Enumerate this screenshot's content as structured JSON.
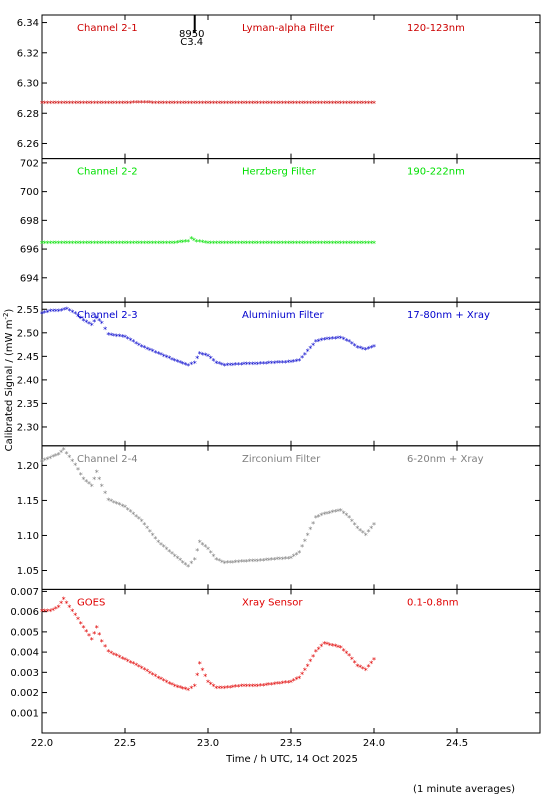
{
  "chart_data": [
    {
      "type": "scatter",
      "panel_id": "ch21",
      "channel_label": "Channel 2-1",
      "filter_label": "Lyman-alpha Filter",
      "band_label": "120-123nm",
      "color": "#cc0000",
      "ylim": [
        6.25,
        6.345
      ],
      "yticks": [
        6.26,
        6.28,
        6.3,
        6.32,
        6.34
      ],
      "ytick_labels": [
        "6.26",
        "6.28",
        "6.30",
        "6.32",
        "6.34"
      ],
      "series": [
        {
          "x": [
            22.0,
            22.1,
            22.2,
            22.3,
            22.4,
            22.5,
            22.6,
            22.7,
            22.8,
            22.9,
            23.0,
            23.1,
            23.2,
            23.3,
            23.4,
            23.5,
            23.6,
            23.7,
            23.8,
            23.9,
            24.0
          ],
          "y": [
            6.2865,
            6.2865,
            6.2865,
            6.2865,
            6.2865,
            6.2865,
            6.2868,
            6.2865,
            6.2865,
            6.2865,
            6.2865,
            6.2865,
            6.2865,
            6.2865,
            6.2865,
            6.2865,
            6.2865,
            6.2865,
            6.2865,
            6.2865,
            6.2865
          ]
        }
      ],
      "flare_marker": {
        "x": 22.92,
        "label_top": "8950",
        "label_bottom": "C3.4"
      }
    },
    {
      "type": "scatter",
      "panel_id": "ch22",
      "channel_label": "Channel 2-2",
      "filter_label": "Herzberg Filter",
      "band_label": "190-222nm",
      "color": "#00e000",
      "ylim": [
        692.3,
        702.3
      ],
      "yticks": [
        694,
        696,
        698,
        700,
        702
      ],
      "ytick_labels": [
        "694",
        "696",
        "698",
        "700",
        "702"
      ],
      "series": [
        {
          "x": [
            22.0,
            22.1,
            22.2,
            22.3,
            22.4,
            22.5,
            22.6,
            22.7,
            22.8,
            22.88,
            22.9,
            22.93,
            23.0,
            23.1,
            23.2,
            23.3,
            23.4,
            23.5,
            23.6,
            23.7,
            23.8,
            23.9,
            24.0
          ],
          "y": [
            696.4,
            696.4,
            696.4,
            696.4,
            696.4,
            696.4,
            696.4,
            696.4,
            696.4,
            696.5,
            696.7,
            696.5,
            696.4,
            696.4,
            696.4,
            696.4,
            696.4,
            696.4,
            696.4,
            696.4,
            696.4,
            696.4,
            696.4
          ]
        }
      ]
    },
    {
      "type": "scatter",
      "panel_id": "ch23",
      "channel_label": "Channel 2-3",
      "filter_label": "Aluminium Filter",
      "band_label": "17-80nm + Xray",
      "color": "#0000cc",
      "ylim": [
        2.26,
        2.565
      ],
      "yticks": [
        2.3,
        2.35,
        2.4,
        2.45,
        2.5,
        2.55
      ],
      "ytick_labels": [
        "2.30",
        "2.35",
        "2.40",
        "2.45",
        "2.50",
        "2.55"
      ],
      "series": [
        {
          "x": [
            22.0,
            22.05,
            22.1,
            22.15,
            22.2,
            22.25,
            22.3,
            22.33,
            22.36,
            22.4,
            22.5,
            22.6,
            22.7,
            22.8,
            22.88,
            22.92,
            22.95,
            23.0,
            23.05,
            23.1,
            23.2,
            23.3,
            23.4,
            23.5,
            23.55,
            23.6,
            23.65,
            23.7,
            23.8,
            23.85,
            23.9,
            23.95,
            24.0
          ],
          "y": [
            2.54,
            2.545,
            2.545,
            2.55,
            2.54,
            2.525,
            2.515,
            2.53,
            2.52,
            2.495,
            2.49,
            2.47,
            2.455,
            2.44,
            2.43,
            2.435,
            2.455,
            2.45,
            2.435,
            2.43,
            2.432,
            2.433,
            2.435,
            2.437,
            2.44,
            2.46,
            2.48,
            2.485,
            2.488,
            2.48,
            2.468,
            2.463,
            2.47
          ]
        }
      ]
    },
    {
      "type": "scatter",
      "panel_id": "ch24",
      "channel_label": "Channel 2-4",
      "filter_label": "Zirconium Filter",
      "band_label": "6-20nm + Xray",
      "color": "#808080",
      "ylim": [
        1.023,
        1.228
      ],
      "yticks": [
        1.05,
        1.1,
        1.15,
        1.2
      ],
      "ytick_labels": [
        "1.05",
        "1.10",
        "1.15",
        "1.20"
      ],
      "series": [
        {
          "x": [
            22.0,
            22.05,
            22.1,
            22.13,
            22.2,
            22.25,
            22.3,
            22.33,
            22.36,
            22.4,
            22.5,
            22.6,
            22.7,
            22.8,
            22.88,
            22.92,
            22.95,
            23.0,
            23.05,
            23.1,
            23.2,
            23.3,
            23.4,
            23.5,
            23.55,
            23.6,
            23.65,
            23.7,
            23.8,
            23.85,
            23.9,
            23.95,
            24.0
          ],
          "y": [
            1.205,
            1.21,
            1.215,
            1.222,
            1.2,
            1.18,
            1.17,
            1.19,
            1.17,
            1.15,
            1.14,
            1.12,
            1.09,
            1.07,
            1.055,
            1.065,
            1.09,
            1.08,
            1.065,
            1.06,
            1.062,
            1.063,
            1.065,
            1.067,
            1.075,
            1.1,
            1.125,
            1.13,
            1.135,
            1.125,
            1.11,
            1.1,
            1.115
          ]
        }
      ]
    },
    {
      "type": "scatter",
      "panel_id": "goes",
      "channel_label": "GOES",
      "filter_label": "Xray Sensor",
      "band_label": "0.1-0.8nm",
      "color": "#e00000",
      "ylim": [
        0.0,
        0.0071
      ],
      "yticks": [
        0.001,
        0.002,
        0.003,
        0.004,
        0.005,
        0.006,
        0.007
      ],
      "ytick_labels": [
        "0.001",
        "0.002",
        "0.003",
        "0.004",
        "0.005",
        "0.006",
        "0.007"
      ],
      "series": [
        {
          "x": [
            22.0,
            22.05,
            22.1,
            22.13,
            22.2,
            22.25,
            22.3,
            22.33,
            22.36,
            22.4,
            22.5,
            22.6,
            22.7,
            22.8,
            22.88,
            22.92,
            22.95,
            23.0,
            23.05,
            23.1,
            23.2,
            23.3,
            23.4,
            23.5,
            23.55,
            23.6,
            23.65,
            23.7,
            23.8,
            23.85,
            23.9,
            23.95,
            24.0
          ],
          "y": [
            0.006,
            0.006,
            0.0062,
            0.0066,
            0.0058,
            0.0052,
            0.0046,
            0.0052,
            0.0045,
            0.004,
            0.0036,
            0.0032,
            0.0027,
            0.0023,
            0.0021,
            0.0023,
            0.0034,
            0.0025,
            0.0022,
            0.0022,
            0.0023,
            0.0023,
            0.0024,
            0.0025,
            0.0027,
            0.0033,
            0.004,
            0.0044,
            0.0042,
            0.0038,
            0.0033,
            0.0031,
            0.0036
          ]
        }
      ]
    }
  ],
  "shared": {
    "xlim": [
      22.0,
      25.0
    ],
    "xticks": [
      22.0,
      22.5,
      23.0,
      23.5,
      24.0,
      24.5
    ],
    "xtick_labels": [
      "22.0",
      "22.5",
      "23.0",
      "23.5",
      "24.0",
      "24.5"
    ],
    "xlabel": "Time / h UTC, 14 Oct 2025",
    "ylabel_main": "Calibrated Signal / (mW m",
    "ylabel_sup": "-2",
    "ylabel_close": ")",
    "footnote": "(1 minute averages)"
  }
}
